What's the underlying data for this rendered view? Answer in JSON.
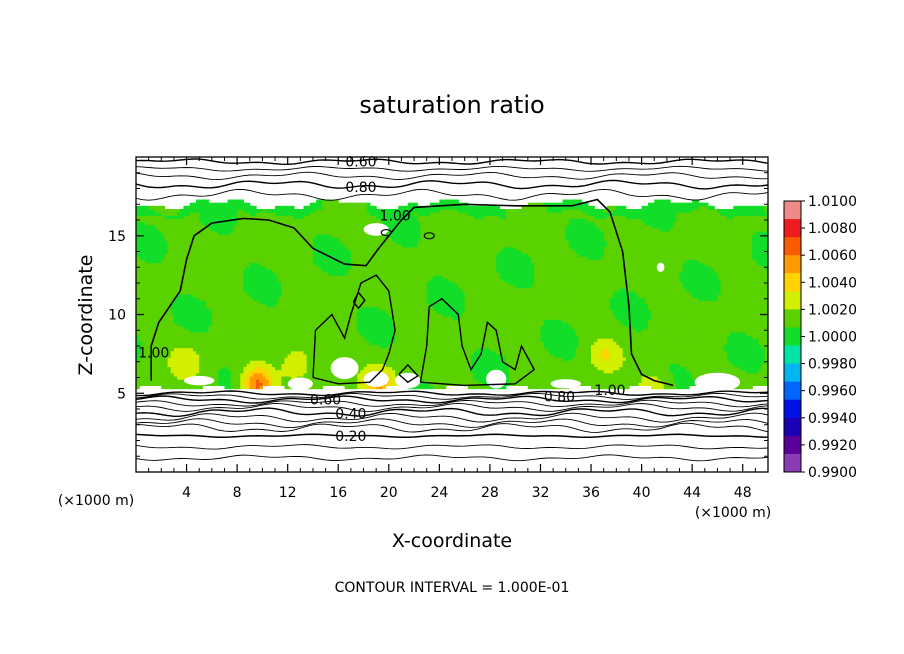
{
  "chart_data": {
    "type": "heatmap",
    "title": "saturation ratio",
    "xlabel": "X-coordinate",
    "ylabel": "Z-coordinate",
    "x_unit": "(×1000 m)",
    "y_unit": "(×1000 m)",
    "xlim": [
      0,
      50
    ],
    "ylim": [
      0,
      20
    ],
    "x_ticks": [
      4,
      8,
      12,
      16,
      20,
      24,
      28,
      32,
      36,
      40,
      44,
      48
    ],
    "y_ticks": [
      5,
      10,
      15
    ],
    "footer": "CONTOUR INTERVAL = 1.000E-01",
    "colorbar": {
      "min": 0.99,
      "max": 1.01,
      "labels": [
        "1.0100",
        "1.0080",
        "1.0060",
        "1.0040",
        "1.0020",
        "1.0000",
        "0.9980",
        "0.9960",
        "0.9940",
        "0.9920",
        "0.9900"
      ],
      "colors": [
        "#f08a8a",
        "#ee1c1c",
        "#fa5a00",
        "#ff9b00",
        "#ffd200",
        "#d2ef00",
        "#5ad200",
        "#12de2a",
        "#00e3a8",
        "#00b4f0",
        "#0064ff",
        "#0012e6",
        "#1a00b4",
        "#5a0098",
        "#8a3cb4"
      ]
    },
    "contour_labels": [
      {
        "text": "0.60",
        "x": 17.8,
        "z": 19.7
      },
      {
        "text": "0.80",
        "x": 17.8,
        "z": 18.1
      },
      {
        "text": "1.00",
        "x": 20.5,
        "z": 16.3
      },
      {
        "text": "1.00",
        "x": 1.4,
        "z": 7.6
      },
      {
        "text": "1.00",
        "x": 37.5,
        "z": 5.2
      },
      {
        "text": "0.80",
        "x": 33.5,
        "z": 4.8
      },
      {
        "text": "0.60",
        "x": 15.0,
        "z": 4.6
      },
      {
        "text": "0.40",
        "x": 17.0,
        "z": 3.7
      },
      {
        "text": "0.20",
        "x": 17.0,
        "z": 2.3
      }
    ],
    "field": {
      "moist_layer_z": [
        5.5,
        17.0
      ],
      "mean_value": 1.001,
      "hotspots": [
        {
          "x": 9.6,
          "z": 5.6,
          "value": 1.0065
        },
        {
          "x": 19.4,
          "z": 5.6,
          "value": 1.0045
        },
        {
          "x": 12.8,
          "z": 7.0,
          "value": 1.0035
        },
        {
          "x": 37.0,
          "z": 7.5,
          "value": 1.003
        },
        {
          "x": 4.0,
          "z": 7.0,
          "value": 1.0025
        },
        {
          "x": 41.0,
          "z": 5.4,
          "value": 1.003
        }
      ]
    }
  }
}
